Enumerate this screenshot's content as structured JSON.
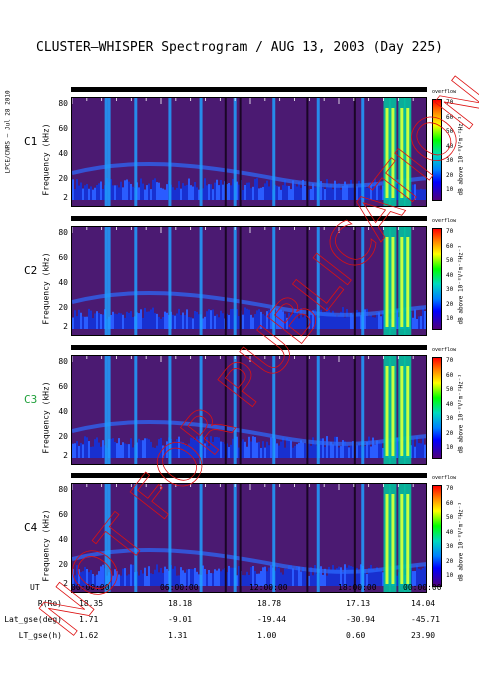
{
  "title": "CLUSTER–WHISPER Spectrogram / AUG 13, 2003 (Day 225)",
  "side_label": "LPCE/CNRS – Jul 28 2010",
  "colorbar": {
    "label": "dB above 10⁻⁸V²m⁻²Hz⁻¹",
    "ticks": [
      "70",
      "60",
      "50",
      "40",
      "30",
      "20",
      "10"
    ],
    "overflow_label": "overflow",
    "colors": [
      "#ff0000",
      "#ff8000",
      "#ffff00",
      "#00ff00",
      "#00d8c0",
      "#0080ff",
      "#0000ff",
      "#50007a"
    ]
  },
  "watermark": "NOT FOR PUBLICATION",
  "chart_data": [
    {
      "type": "heatmap",
      "satellite": "C1",
      "satellite_color": "#000000",
      "ylabel": "Frequency (kHz)",
      "yticks": [
        "80",
        "60",
        "40",
        "20",
        "2"
      ],
      "ylim": [
        2,
        80
      ],
      "xlim": [
        "00:00:00",
        "24:00:00"
      ]
    },
    {
      "type": "heatmap",
      "satellite": "C2",
      "satellite_color": "#000000",
      "ylabel": "Frequency (kHz)",
      "yticks": [
        "80",
        "60",
        "40",
        "20",
        "2"
      ],
      "ylim": [
        2,
        80
      ],
      "xlim": [
        "00:00:00",
        "24:00:00"
      ]
    },
    {
      "type": "heatmap",
      "satellite": "C3",
      "satellite_color": "#1fa03a",
      "ylabel": "Frequency (kHz)",
      "yticks": [
        "80",
        "60",
        "40",
        "20",
        "2"
      ],
      "ylim": [
        2,
        80
      ],
      "xlim": [
        "00:00:00",
        "24:00:00"
      ]
    },
    {
      "type": "heatmap",
      "satellite": "C4",
      "satellite_color": "#000000",
      "ylabel": "Frequency (kHz)",
      "yticks": [
        "80",
        "60",
        "40",
        "20",
        "2"
      ],
      "ylim": [
        2,
        80
      ],
      "xlim": [
        "00:00:00",
        "24:00:00"
      ]
    }
  ],
  "ephemeris": {
    "ut_label": "UT",
    "ut": [
      "00:00:00",
      "06:00:00",
      "12:00:00",
      "18:00:00",
      "00:00:00"
    ],
    "rows": [
      {
        "label": "R(Re)",
        "values": [
          "18.35",
          "18.18",
          "18.78",
          "17.13",
          "14.04"
        ]
      },
      {
        "label": "Lat_gse(deg)",
        "values": [
          "1.71",
          "-9.01",
          "-19.44",
          "-30.94",
          "-45.71"
        ]
      },
      {
        "label": "LT_gse(h)",
        "values": [
          "1.62",
          "1.31",
          "1.00",
          "0.60",
          "23.90"
        ]
      }
    ]
  },
  "spectrogram_features": {
    "bright_band_times_h": [
      2.2,
      2.4,
      4.2,
      6.5,
      8.6,
      10.9,
      13.5,
      16.5,
      19.5,
      21.0,
      21.4,
      22.0,
      22.4
    ],
    "dark_gap_times_h": [
      10.3,
      11.3,
      15.8,
      19.0
    ]
  }
}
